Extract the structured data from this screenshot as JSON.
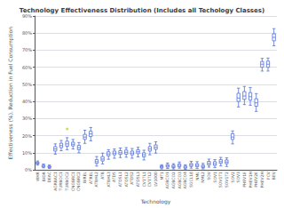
{
  "chart_data": {
    "type": "boxplot",
    "title": "Technology Effectiveness Distribution (Includes all Techology Classes)",
    "xlabel": "Technology",
    "ylabel": "Effectiveness (%), Reduction in Fuel Consumption",
    "categories": [
      "WHR",
      "BIDR",
      "DEAC",
      "AGRBAC1",
      "TURBOC1",
      "TURBOC2",
      "CNGBRC1",
      "CNGBRC2",
      "BIREL",
      "ATREL",
      "ATBHL2",
      "ATB",
      "ATBHL3",
      "ATDS",
      "ATDSL1",
      "ATDSL2",
      "ATDS2",
      "ATDSL3",
      "CV1TL1",
      "CV1TL2",
      "LV1000",
      "MT1",
      "AGBCO1",
      "AGBCO2",
      "AGBCO3",
      "AGBCO4",
      "SGCL18",
      "NML",
      "NML2",
      "SOV",
      "SOV1",
      "SOV1T1",
      "SOV1T2",
      "SOV2",
      "SOV3",
      "PHEV1E",
      "PHEV1H",
      "PHEV2E",
      "PHEV2H",
      "FCV",
      "BEV"
    ],
    "values": [
      [
        0.028,
        0.035,
        0.04,
        0.046,
        0.052
      ],
      [
        0.012,
        0.017,
        0.022,
        0.028,
        0.034
      ],
      [
        0.008,
        0.013,
        0.018,
        0.023,
        0.028
      ],
      [
        0.092,
        0.11,
        0.122,
        0.136,
        0.152
      ],
      [
        0.112,
        0.13,
        0.142,
        0.156,
        0.172
      ],
      [
        0.118,
        0.138,
        0.152,
        0.168,
        0.188
      ],
      [
        0.122,
        0.14,
        0.15,
        0.162,
        0.178
      ],
      [
        0.1,
        0.118,
        0.13,
        0.144,
        0.16
      ],
      [
        0.155,
        0.178,
        0.192,
        0.208,
        0.232
      ],
      [
        0.17,
        0.195,
        0.21,
        0.226,
        0.248
      ],
      [
        0.022,
        0.038,
        0.048,
        0.06,
        0.078
      ],
      [
        0.035,
        0.052,
        0.063,
        0.078,
        0.098
      ],
      [
        0.062,
        0.082,
        0.093,
        0.106,
        0.118
      ],
      [
        0.068,
        0.088,
        0.098,
        0.11,
        0.122
      ],
      [
        0.072,
        0.09,
        0.1,
        0.113,
        0.128
      ],
      [
        0.074,
        0.092,
        0.103,
        0.116,
        0.13
      ],
      [
        0.068,
        0.088,
        0.098,
        0.11,
        0.125
      ],
      [
        0.076,
        0.095,
        0.106,
        0.118,
        0.132
      ],
      [
        0.058,
        0.076,
        0.088,
        0.1,
        0.115
      ],
      [
        0.088,
        0.11,
        0.122,
        0.136,
        0.155
      ],
      [
        0.098,
        0.12,
        0.132,
        0.146,
        0.164
      ],
      [
        0.006,
        0.012,
        0.018,
        0.024,
        0.03
      ],
      [
        0.008,
        0.016,
        0.023,
        0.031,
        0.04
      ],
      [
        0.006,
        0.013,
        0.02,
        0.028,
        0.036
      ],
      [
        0.01,
        0.018,
        0.026,
        0.035,
        0.046
      ],
      [
        0.004,
        0.01,
        0.016,
        0.023,
        0.03
      ],
      [
        0.01,
        0.02,
        0.028,
        0.038,
        0.05
      ],
      [
        0.008,
        0.018,
        0.026,
        0.036,
        0.048
      ],
      [
        0.006,
        0.013,
        0.02,
        0.028,
        0.038
      ],
      [
        0.016,
        0.028,
        0.038,
        0.05,
        0.063
      ],
      [
        0.013,
        0.026,
        0.036,
        0.048,
        0.06
      ],
      [
        0.023,
        0.038,
        0.048,
        0.06,
        0.073
      ],
      [
        0.02,
        0.036,
        0.046,
        0.058,
        0.07
      ],
      [
        0.152,
        0.178,
        0.192,
        0.212,
        0.228
      ],
      [
        0.368,
        0.4,
        0.42,
        0.448,
        0.478
      ],
      [
        0.382,
        0.412,
        0.432,
        0.458,
        0.488
      ],
      [
        0.378,
        0.408,
        0.428,
        0.452,
        0.482
      ],
      [
        0.342,
        0.372,
        0.392,
        0.416,
        0.446
      ],
      [
        0.578,
        0.6,
        0.618,
        0.634,
        0.652
      ],
      [
        0.578,
        0.6,
        0.618,
        0.636,
        0.654
      ],
      [
        0.726,
        0.755,
        0.775,
        0.796,
        0.826
      ]
    ],
    "fliers": [
      [],
      [],
      [],
      [],
      [],
      [
        0.24
      ],
      [],
      [],
      [],
      [],
      [],
      [],
      [],
      [],
      [],
      [],
      [],
      [],
      [],
      [],
      [],
      [],
      [],
      [],
      [],
      [],
      [],
      [],
      [],
      [],
      [],
      [],
      [],
      [],
      [],
      [],
      [],
      [],
      [],
      [],
      []
    ],
    "ylim": [
      0,
      0.9
    ],
    "yticks": [
      {
        "value": 0.0,
        "label": "0%"
      },
      {
        "value": 0.1,
        "label": "10%"
      },
      {
        "value": 0.2,
        "label": "20%"
      },
      {
        "value": 0.3,
        "label": "30%"
      },
      {
        "value": 0.4,
        "label": "40%"
      },
      {
        "value": 0.5,
        "label": "50%"
      },
      {
        "value": 0.6,
        "label": "60%"
      },
      {
        "value": 0.7,
        "label": "70%"
      },
      {
        "value": 0.8,
        "label": "80%"
      },
      {
        "value": 0.9,
        "label": "90%"
      }
    ],
    "grid": true
  }
}
